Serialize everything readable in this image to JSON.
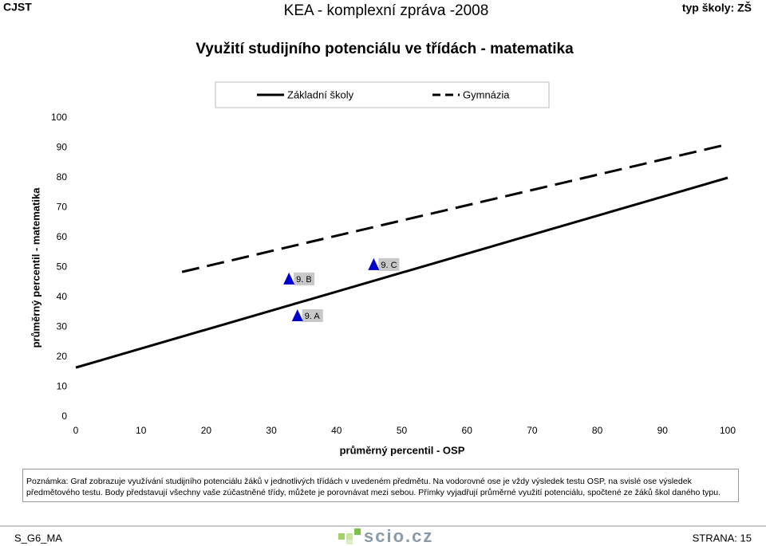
{
  "header": {
    "left": "CJST",
    "center": "KEA - komplexní zpráva -2008",
    "right": "typ školy: ZŠ"
  },
  "chart_data": {
    "type": "scatter",
    "title": "Využití studijního potenciálu ve třídách - matematika",
    "xlabel": "průměrný percentil - OSP",
    "ylabel": "průměrný percentil - matematika",
    "xlim": [
      0,
      100
    ],
    "ylim": [
      0,
      100
    ],
    "xticks": [
      0,
      10,
      20,
      30,
      40,
      50,
      60,
      70,
      80,
      90,
      100
    ],
    "yticks": [
      0,
      10,
      20,
      30,
      40,
      50,
      60,
      70,
      80,
      90,
      100
    ],
    "series": [
      {
        "name": "Základní školy",
        "color": "#000000",
        "style": "solid",
        "x": [
          0,
          100
        ],
        "values": [
          16.5,
          80
        ]
      },
      {
        "name": "Gymnázia",
        "color": "#000000",
        "style": "dashed",
        "x": [
          16.3,
          100
        ],
        "values": [
          48.5,
          91.2
        ]
      }
    ],
    "points": {
      "color": "#0000cc",
      "labels": [
        "9. B",
        "9. A",
        "9. C"
      ],
      "x": [
        32.7,
        34,
        45.7
      ],
      "values": [
        45.9,
        33.6,
        50.7
      ]
    }
  },
  "note": "Poznámka: Graf zobrazuje využívání studijního potenciálu žáků v jednotlivých třídách v uvedeném předmětu. Na vodorovné ose je vždy výsledek testu OSP, na svislé ose výsledek předmětového testu. Body představují všechny vaše zúčastněné třídy, můžete je porovnávat mezi sebou. Přímky vyjadřují průměrné využití potenciálu, spočtené ze žáků škol daného typu.",
  "footer": {
    "left": "S_G6_MA",
    "logo": "scio.cz",
    "right": "STRANA: 15"
  }
}
